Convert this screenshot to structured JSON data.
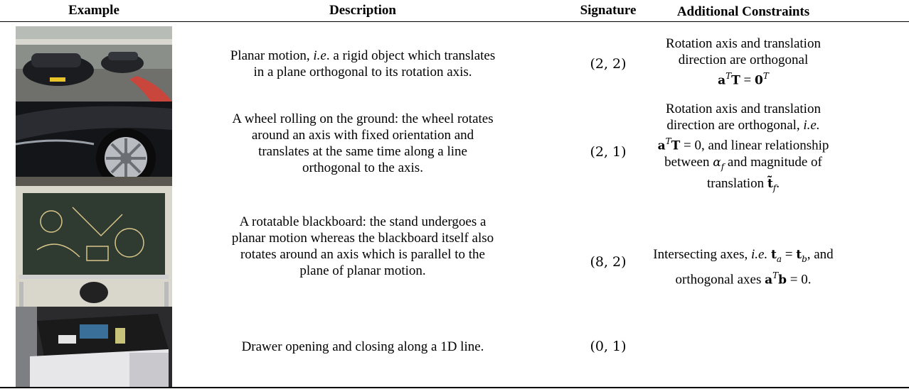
{
  "table": {
    "header": [
      "Example",
      "Description",
      "Signature",
      "Additional Constraints"
    ],
    "rows": [
      {
        "description": [
          "Planar motion, ",
          "i.e",
          ". a rigid object which translates",
          "in a plane orthogonal to its rotation axis."
        ],
        "signature": "(2, 2)",
        "constraints": [
          "Rotation axis and translation",
          "direction are orthogonal",
          "a",
          "T",
          "T",
          " = ",
          "0",
          "T"
        ]
      },
      {
        "description": [
          "A wheel rolling on the ground: the wheel rotates",
          "around an axis with fixed orientation and",
          "translates at the same time along a line",
          "orthogonal to the axis."
        ],
        "signature": "(2, 1)",
        "constraints": [
          "Rotation axis and translation",
          "direction are orthogonal, ",
          "i.e.",
          "a",
          "T",
          "T",
          " = 0, and linear relationship",
          "between ",
          "α",
          "f",
          " and magnitude of",
          "translation ",
          "t̃",
          "f",
          "."
        ]
      },
      {
        "description": [
          "A rotatable blackboard: the stand undergoes a",
          "planar motion whereas the blackboard itself also",
          "rotates around an axis which is parallel to the",
          "plane of planar motion."
        ],
        "signature": "(8, 2)",
        "constraints": [
          "Intersecting axes, ",
          "i.e.",
          "t",
          "a",
          " = ",
          "t",
          "b",
          ", and",
          "orthogonal axes ",
          "a",
          "T",
          "b",
          " = 0."
        ]
      },
      {
        "description": [
          "Drawer opening and closing along a 1D line."
        ],
        "signature": "(0, 1)"
      }
    ]
  }
}
